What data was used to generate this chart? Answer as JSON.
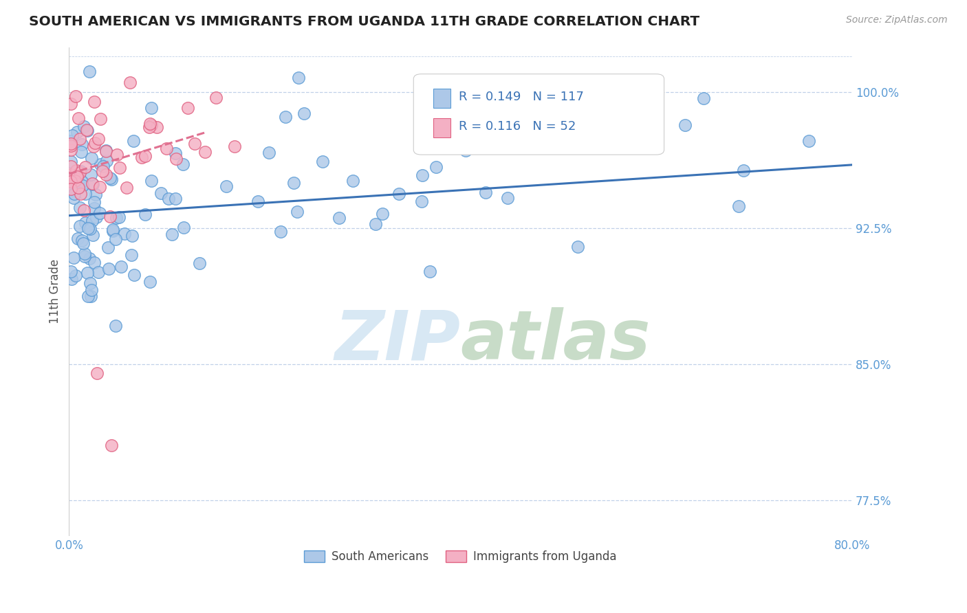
{
  "title": "SOUTH AMERICAN VS IMMIGRANTS FROM UGANDA 11TH GRADE CORRELATION CHART",
  "source": "Source: ZipAtlas.com",
  "ylabel": "11th Grade",
  "x_min": 0.0,
  "x_max": 80.0,
  "y_min": 75.5,
  "y_max": 102.5,
  "y_ticks": [
    77.5,
    85.0,
    92.5,
    100.0
  ],
  "y_tick_labels": [
    "77.5%",
    "85.0%",
    "92.5%",
    "100.0%"
  ],
  "x_tick_labels": [
    "0.0%",
    "",
    "",
    "",
    "80.0%"
  ],
  "blue_R": 0.149,
  "blue_N": 117,
  "pink_R": 0.116,
  "pink_N": 52,
  "blue_color": "#adc8e8",
  "blue_edge_color": "#5b9bd5",
  "pink_color": "#f4b0c4",
  "pink_edge_color": "#e06080",
  "blue_trend_color": "#3a72b5",
  "pink_trend_color": "#e07090",
  "watermark_color": "#d8e8f4",
  "legend_blue_label": "South Americans",
  "legend_pink_label": "Immigrants from Uganda",
  "blue_trend_x0": 0.0,
  "blue_trend_x1": 80.0,
  "blue_trend_y0": 93.2,
  "blue_trend_y1": 96.0,
  "pink_trend_x0": 0.0,
  "pink_trend_x1": 14.0,
  "pink_trend_y0": 95.5,
  "pink_trend_y1": 97.8
}
